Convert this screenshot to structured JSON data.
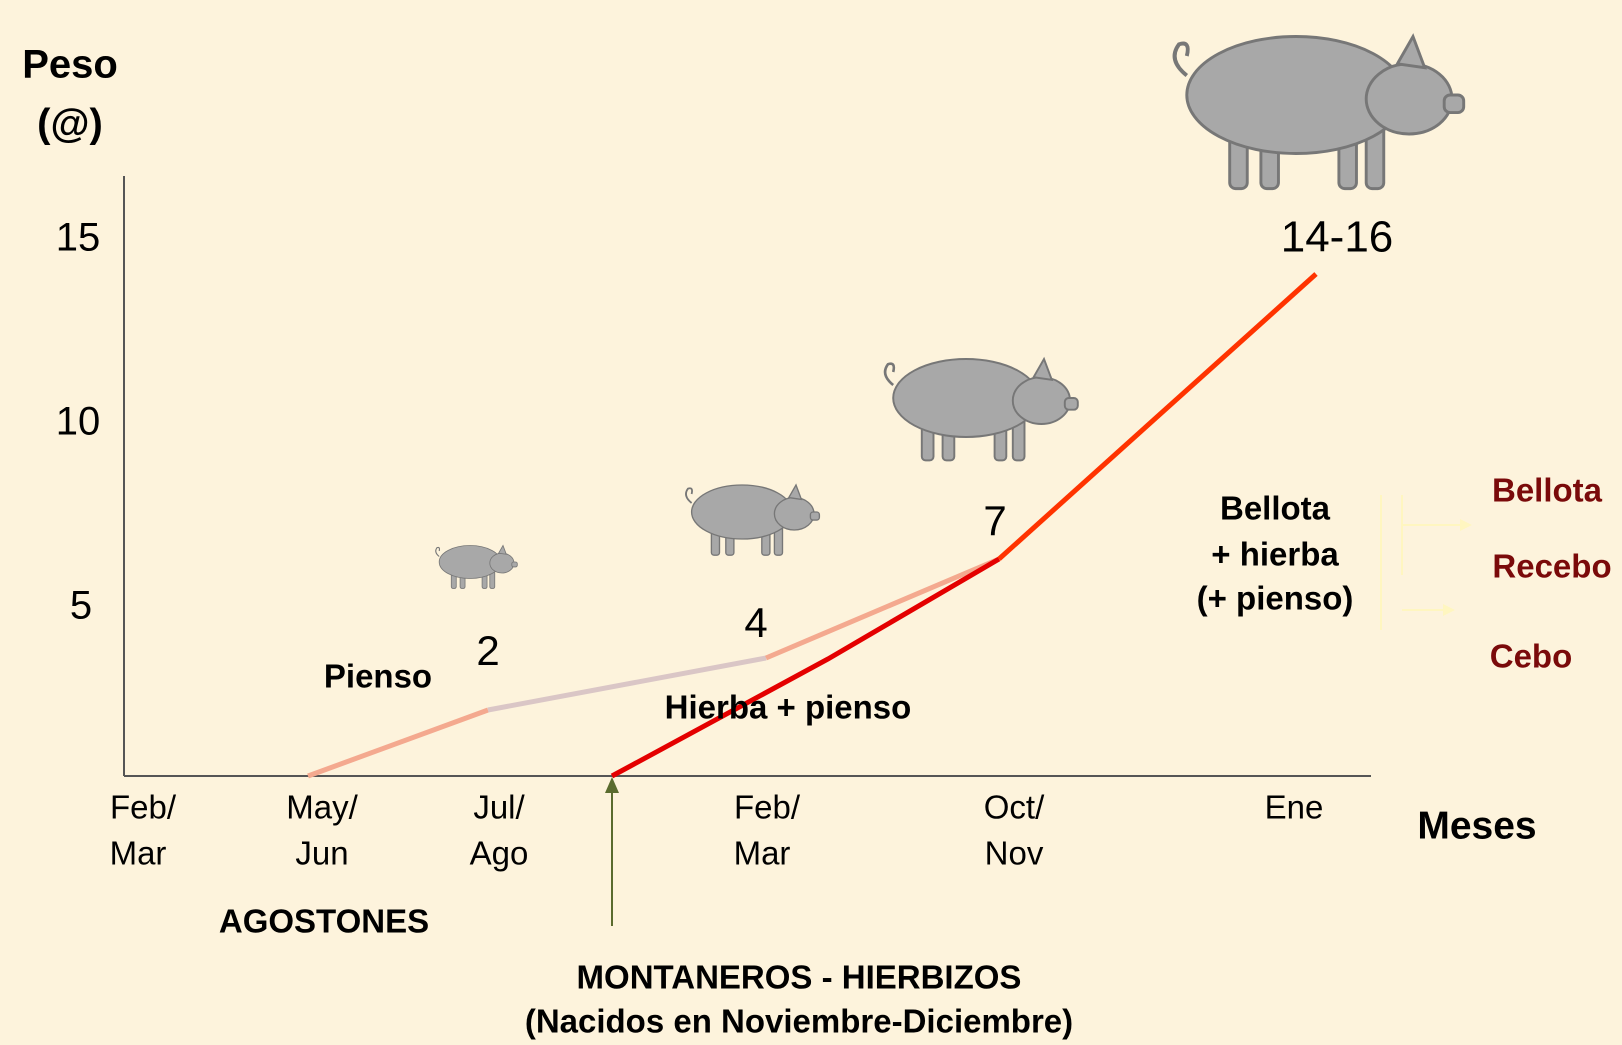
{
  "axis": {
    "y_title": [
      "Peso",
      "(@)"
    ],
    "y_ticks": [
      15,
      10,
      5
    ],
    "x_title": "Meses",
    "x_ticks": [
      [
        "Feb/",
        "Mar"
      ],
      [
        "May/",
        "Jun"
      ],
      [
        "Jul/",
        "Ago"
      ],
      [
        "Feb/",
        "Mar"
      ],
      [
        "Oct/",
        "Nov"
      ],
      [
        "Ene"
      ]
    ]
  },
  "point_labels": [
    "2",
    "4",
    "7",
    "14-16"
  ],
  "annotations": {
    "pienso": "Pienso",
    "hierba": "Hierba + pienso",
    "bellota": [
      "Bellota",
      "+ hierba",
      "(+ pienso)"
    ]
  },
  "categories": [
    "Bellota",
    "Recebo",
    "Cebo"
  ],
  "groups": {
    "agostones": "AGOSTONES",
    "montaneros": [
      "MONTANEROS - HIERBIZOS",
      "(Nacidos en Noviembre-Diciembre)"
    ]
  }
}
